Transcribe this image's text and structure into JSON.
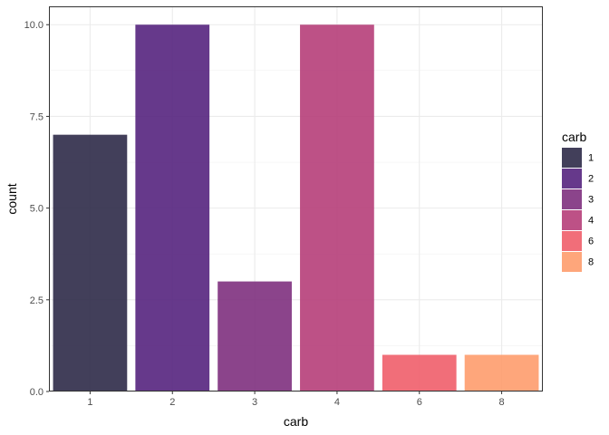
{
  "chart_data": {
    "type": "bar",
    "categories": [
      "1",
      "2",
      "3",
      "4",
      "6",
      "8"
    ],
    "values": [
      7,
      10,
      3,
      10,
      1,
      1
    ],
    "colors": [
      "#2d2a48",
      "#55237e",
      "#7e307e",
      "#b63e79",
      "#ef5e6a",
      "#fe9c6d"
    ],
    "xlabel": "carb",
    "ylabel": "count",
    "ylim": [
      0,
      10.5
    ],
    "yticks": [
      0,
      2.5,
      5,
      7.5,
      10
    ],
    "ytick_labels": [
      "0.0",
      "2.5",
      "5.0",
      "7.5",
      "10.0"
    ],
    "grid": true,
    "legend": {
      "title": "carb",
      "position": "right",
      "entries": [
        "1",
        "2",
        "3",
        "4",
        "6",
        "8"
      ]
    }
  }
}
